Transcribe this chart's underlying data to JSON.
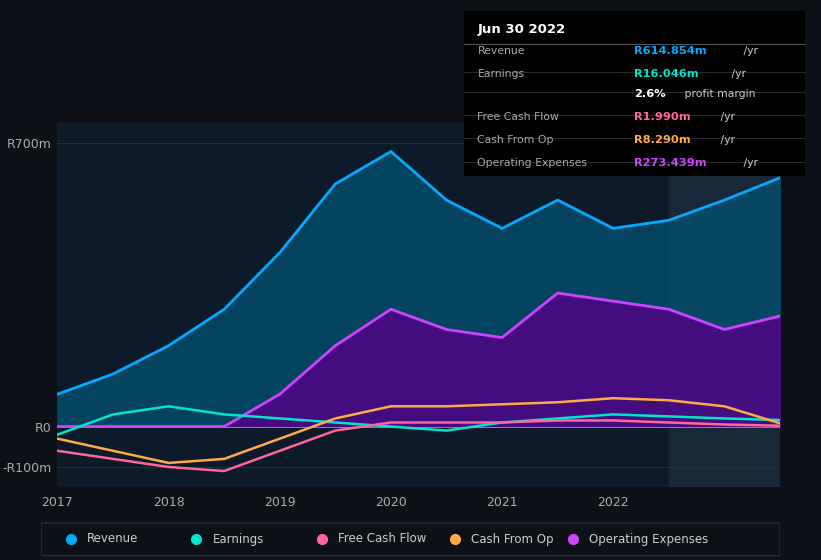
{
  "bg_color": "#0d1117",
  "plot_bg_color": "#0d1a2a",
  "highlight_bg_color": "#1a2a3a",
  "grid_color": "#1e3050",
  "y_tick_color": "#aaaaaa",
  "x_tick_color": "#aaaaaa",
  "ylabel_top": "R700m",
  "ylabel_zero": "R0",
  "ylabel_neg": "-R100m",
  "x_labels": [
    "2017",
    "2018",
    "2019",
    "2020",
    "2021",
    "2022"
  ],
  "ylim": [
    -150,
    750
  ],
  "xlim": [
    0,
    6.5
  ],
  "revenue_color": "#00aaff",
  "revenue_fill_color": "#005577",
  "earnings_color": "#00e5cc",
  "free_cash_flow_color": "#ff6699",
  "cash_from_op_color": "#ffaa44",
  "operating_expenses_color": "#cc44ff",
  "operating_expenses_fill_color": "#550088",
  "highlight_x_start": 5.5,
  "info_box": {
    "date": "Jun 30 2022",
    "rows": [
      {
        "label": "Revenue",
        "value": "R614.854m",
        "color": "#00aaff",
        "suffix": " /yr"
      },
      {
        "label": "Earnings",
        "value": "R16.046m",
        "color": "#00e5cc",
        "suffix": " /yr"
      },
      {
        "label": "",
        "value": "2.6%",
        "color": "#ffffff",
        "suffix": " profit margin"
      },
      {
        "label": "Free Cash Flow",
        "value": "R1.990m",
        "color": "#ff6699",
        "suffix": " /yr"
      },
      {
        "label": "Cash From Op",
        "value": "R8.290m",
        "color": "#ffaa44",
        "suffix": " /yr"
      },
      {
        "label": "Operating Expenses",
        "value": "R273.439m",
        "color": "#cc44ff",
        "suffix": " /yr"
      }
    ]
  },
  "revenue_x": [
    0,
    0.5,
    1.0,
    1.5,
    2.0,
    2.5,
    3.0,
    3.5,
    4.0,
    4.5,
    5.0,
    5.5,
    6.0,
    6.5
  ],
  "revenue_y": [
    80,
    130,
    200,
    290,
    430,
    600,
    680,
    560,
    490,
    560,
    490,
    510,
    560,
    615
  ],
  "op_expenses_x": [
    0,
    0.5,
    1.0,
    1.5,
    2.0,
    2.5,
    3.0,
    3.5,
    4.0,
    4.5,
    5.0,
    5.5,
    6.0,
    6.5
  ],
  "op_expenses_y": [
    0,
    0,
    0,
    0,
    80,
    200,
    290,
    240,
    220,
    330,
    310,
    290,
    240,
    273
  ],
  "earnings_x": [
    0,
    0.5,
    1.0,
    1.5,
    2.0,
    2.5,
    3.0,
    3.5,
    4.0,
    4.5,
    5.0,
    5.5,
    6.0,
    6.5
  ],
  "earnings_y": [
    -20,
    30,
    50,
    30,
    20,
    10,
    0,
    -10,
    10,
    20,
    30,
    25,
    20,
    16
  ],
  "free_cf_x": [
    0,
    0.5,
    1.0,
    1.5,
    2.0,
    2.5,
    3.0,
    3.5,
    4.0,
    4.5,
    5.0,
    5.5,
    6.0,
    6.5
  ],
  "free_cf_y": [
    -60,
    -80,
    -100,
    -110,
    -60,
    -10,
    10,
    10,
    10,
    15,
    15,
    10,
    5,
    2
  ],
  "cash_op_x": [
    0,
    0.5,
    1.0,
    1.5,
    2.0,
    2.5,
    3.0,
    3.5,
    4.0,
    4.5,
    5.0,
    5.5,
    6.0,
    6.5
  ],
  "cash_op_y": [
    -30,
    -60,
    -90,
    -80,
    -30,
    20,
    50,
    50,
    55,
    60,
    70,
    65,
    50,
    8
  ],
  "legend_items": [
    {
      "label": "Revenue",
      "color": "#00aaff"
    },
    {
      "label": "Earnings",
      "color": "#00e5cc"
    },
    {
      "label": "Free Cash Flow",
      "color": "#ff6699"
    },
    {
      "label": "Cash From Op",
      "color": "#ffaa44"
    },
    {
      "label": "Operating Expenses",
      "color": "#cc44ff"
    }
  ]
}
